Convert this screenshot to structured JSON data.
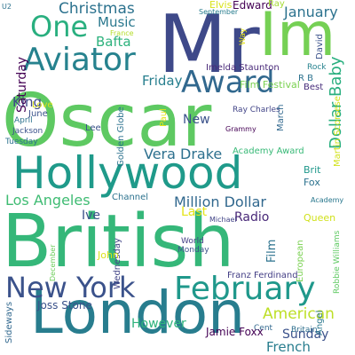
{
  "words": [
    {
      "text": "Oscar",
      "color": "#5ec962"
    },
    {
      "text": "British",
      "color": "#35b779"
    },
    {
      "text": "London",
      "color": "#287d8e"
    },
    {
      "text": "Hollywood",
      "color": "#1f9a8a"
    },
    {
      "text": "Mr",
      "color": "#3e4989"
    },
    {
      "text": "Im",
      "color": "#75d054"
    },
    {
      "text": "New York",
      "color": "#3b528b"
    },
    {
      "text": "February",
      "color": "#1f988b"
    },
    {
      "text": "Aviator",
      "color": "#26828e"
    },
    {
      "text": "Award",
      "color": "#31688e"
    },
    {
      "text": "One",
      "color": "#29af7f"
    },
    {
      "text": "Christmas",
      "color": "#2c728e"
    },
    {
      "text": "Music",
      "color": "#2a788e"
    },
    {
      "text": "Bafta",
      "color": "#2db27d"
    },
    {
      "text": "King",
      "color": "#3e4989"
    },
    {
      "text": "Friday",
      "color": "#277f8e"
    },
    {
      "text": "Los Angeles",
      "color": "#3fbc73"
    },
    {
      "text": "Million Dollar",
      "color": "#31688e"
    },
    {
      "text": "Vera Drake",
      "color": "#2d708e"
    },
    {
      "text": "Dollar Baby",
      "color": "#29af7f"
    },
    {
      "text": "January",
      "color": "#2c728e"
    },
    {
      "text": "American",
      "color": "#bddf26"
    },
    {
      "text": "French",
      "color": "#287d8e"
    },
    {
      "text": "Sunday",
      "color": "#3b528b"
    },
    {
      "text": "However",
      "color": "#2eb37c"
    },
    {
      "text": "Radio",
      "color": "#482878"
    },
    {
      "text": "Last",
      "color": "#e5e419"
    },
    {
      "text": "Ive",
      "color": "#3b528b"
    },
    {
      "text": "New",
      "color": "#3b528b"
    },
    {
      "text": "Saturday",
      "color": "#440154"
    },
    {
      "text": "Edward",
      "color": "#440154"
    },
    {
      "text": "Elvis",
      "color": "#d8e219"
    },
    {
      "text": "Ray",
      "color": "#a5db36"
    },
    {
      "text": "Film Festival",
      "color": "#7ad151"
    },
    {
      "text": "Imelda Staunton",
      "color": "#482878"
    },
    {
      "text": "Lee",
      "color": "#3b528b"
    },
    {
      "text": "Golden Globe",
      "color": "#2c728e"
    },
    {
      "text": "Paul",
      "color": "#e5e419"
    },
    {
      "text": "Ray Charles",
      "color": "#414487"
    },
    {
      "text": "Grammy",
      "color": "#440154"
    },
    {
      "text": "Film",
      "color": "#2c728e"
    },
    {
      "text": "Academy Award",
      "color": "#38b977"
    },
    {
      "text": "Academy",
      "color": "#2a788e"
    },
    {
      "text": "March",
      "color": "#31688e"
    },
    {
      "text": "Martin Scorsese",
      "color": "#d2e21b"
    },
    {
      "text": "Best",
      "color": "#472d7b"
    },
    {
      "text": "Rock",
      "color": "#26828e"
    },
    {
      "text": "David",
      "color": "#3b528b"
    },
    {
      "text": "Way",
      "color": "#e5e419"
    },
    {
      "text": "R B",
      "color": "#2c728e"
    },
    {
      "text": "Brit",
      "color": "#1f988b"
    },
    {
      "text": "Fox",
      "color": "#2c728e"
    },
    {
      "text": "Queen",
      "color": "#d0e11c"
    },
    {
      "text": "Channel",
      "color": "#2c728e"
    },
    {
      "text": "Wednesday",
      "color": "#414487"
    },
    {
      "text": "John",
      "color": "#d8e219"
    },
    {
      "text": "World",
      "color": "#433e85"
    },
    {
      "text": "Monday",
      "color": "#3b528b"
    },
    {
      "text": "Michael",
      "color": "#414487"
    },
    {
      "text": "European",
      "color": "#7ad151"
    },
    {
      "text": "Franz Ferdinand",
      "color": "#433e85"
    },
    {
      "text": "Britain",
      "color": "#2e6f8e"
    },
    {
      "text": "Robbie Williams",
      "color": "#5ec962"
    },
    {
      "text": "Angel",
      "color": "#2a788e"
    },
    {
      "text": "Cent",
      "color": "#31688e"
    },
    {
      "text": "Jamie Foxx",
      "color": "#440154"
    },
    {
      "text": "Joss Stone",
      "color": "#3b528b"
    },
    {
      "text": "Sideways",
      "color": "#31688e"
    },
    {
      "text": "December",
      "color": "#6ccd5a"
    },
    {
      "text": "April",
      "color": "#2c728e"
    },
    {
      "text": "Jackson",
      "color": "#3b528b"
    },
    {
      "text": "Tuesday",
      "color": "#2c728e"
    },
    {
      "text": "June",
      "color": "#3b528b"
    },
    {
      "text": "Love",
      "color": "#d8e219"
    },
    {
      "text": "U2",
      "color": "#2c728e"
    },
    {
      "text": "France",
      "color": "#b5de2b"
    },
    {
      "text": "September",
      "color": "#287d8e"
    }
  ]
}
